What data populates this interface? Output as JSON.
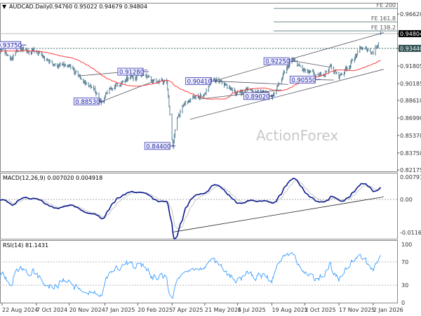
{
  "header": {
    "symbol": "AUDCAD.Daily",
    "ohlc": "0.94760 0.95022 0.94679 0.94804"
  },
  "watermark": "ActionForex",
  "colors": {
    "bars": "#5b8297",
    "ma": "#ff3b3b",
    "macd": "#0a1a8c",
    "signal": "#c8c8c8",
    "rsi": "#3a9cff",
    "label_border": "#3a3ab0",
    "label_fill": "#eef0ff"
  },
  "chart_data": [
    {
      "type": "line",
      "panel": "price",
      "title": "AUDCAD.Daily",
      "ohlc_last": {
        "open": 0.9476,
        "high": 0.95022,
        "low": 0.94679,
        "close": 0.94804
      },
      "y_ticks": [
        "0.96620",
        "0.94804",
        "0.93440",
        "0.91805",
        "0.90185",
        "0.88610",
        "0.86990",
        "0.85370",
        "0.83750",
        "0.82175"
      ],
      "ylim": [
        0.82175,
        0.9662
      ],
      "current_price_label": "0.94804",
      "level_label": "0.93440",
      "close_path": [
        [
          "2024-08-22",
          0.9285
        ],
        [
          "2024-09-05",
          0.925
        ],
        [
          "2024-09-20",
          0.9375
        ],
        [
          "2024-10-07",
          0.93
        ],
        [
          "2024-10-20",
          0.922
        ],
        [
          "2024-11-10",
          0.918
        ],
        [
          "2024-11-20",
          0.914
        ],
        [
          "2024-12-20",
          0.898
        ],
        [
          "2025-01-03",
          0.8853
        ],
        [
          "2025-01-20",
          0.9
        ],
        [
          "2025-02-10",
          0.905
        ],
        [
          "2025-02-20",
          0.91
        ],
        [
          "2025-03-03",
          0.9128
        ],
        [
          "2025-03-15",
          0.905
        ],
        [
          "2025-03-31",
          0.902
        ],
        [
          "2025-04-08",
          0.844
        ],
        [
          "2025-04-15",
          0.872
        ],
        [
          "2025-04-25",
          0.883
        ],
        [
          "2025-05-21",
          0.893
        ],
        [
          "2025-06-02",
          0.9041
        ],
        [
          "2025-07-04",
          0.893
        ],
        [
          "2025-07-20",
          0.897
        ],
        [
          "2025-08-19",
          0.8902
        ],
        [
          "2025-09-01",
          0.905
        ],
        [
          "2025-09-15",
          0.9225
        ],
        [
          "2025-10-02",
          0.912
        ],
        [
          "2025-10-20",
          0.9055
        ],
        [
          "2025-11-05",
          0.918
        ],
        [
          "2025-11-17",
          0.908
        ],
        [
          "2025-12-01",
          0.92
        ],
        [
          "2025-12-15",
          0.933
        ],
        [
          "2026-01-02",
          0.932
        ],
        [
          "2026-01-08",
          0.94
        ],
        [
          "2026-01-12",
          0.948
        ]
      ],
      "annotations": [
        {
          "text": "0.93750",
          "date": "2024-09-20",
          "price": 0.9375
        },
        {
          "text": "0.91280",
          "date": "2025-03-03",
          "price": 0.9128
        },
        {
          "text": "0.88530",
          "date": "2025-01-03",
          "price": 0.8853
        },
        {
          "text": "0.90410",
          "date": "2025-06-02",
          "price": 0.9041
        },
        {
          "text": "0.84400",
          "date": "2025-04-08",
          "price": 0.844
        },
        {
          "text": "0.89020",
          "date": "2025-08-19",
          "price": 0.8902
        },
        {
          "text": "0.92250",
          "date": "2025-09-15",
          "price": 0.9225
        },
        {
          "text": "0.90550",
          "date": "2025-10-20",
          "price": 0.9055
        }
      ],
      "fib_levels": [
        {
          "label": "FE 200",
          "price": 0.9714
        },
        {
          "label": "FE 161.8",
          "price": 0.959
        },
        {
          "label": "FE 138.2",
          "price": 0.9506
        }
      ],
      "trendlines": [
        {
          "from": [
            "2025-06-02",
            0.9041
          ],
          "to": [
            "2026-01-16",
            0.949
          ]
        },
        {
          "from": [
            "2025-05-01",
            0.8686
          ],
          "to": [
            "2026-01-16",
            0.915
          ]
        },
        {
          "from": [
            "2025-01-03",
            0.8853
          ],
          "to": [
            "2025-03-10",
            0.903
          ]
        },
        {
          "from": [
            "2024-12-05",
            0.909
          ],
          "to": [
            "2025-03-05",
            0.9145
          ]
        },
        {
          "from": [
            "2025-06-02",
            0.9041
          ],
          "to": [
            "2025-09-10",
            0.901
          ]
        },
        {
          "from": [
            "2025-05-15",
            0.8875
          ],
          "to": [
            "2025-09-01",
            0.896
          ]
        },
        {
          "from": [
            "2025-09-15",
            0.923
          ],
          "to": [
            "2025-11-05",
            0.917
          ]
        },
        {
          "from": [
            "2025-09-20",
            0.906
          ],
          "to": [
            "2025-11-10",
            0.905
          ]
        }
      ]
    },
    {
      "type": "line",
      "panel": "macd",
      "title": "MACD(12,26,9) 0.007020 0.004918",
      "y_ticks": [
        "0.00791",
        "0.00",
        "-0.011672"
      ],
      "ylim": [
        -0.011672,
        0.00791
      ],
      "trendline": {
        "from": [
          "2025-04-08",
          -0.0115
        ],
        "to": [
          "2026-01-16",
          0.0009
        ]
      }
    },
    {
      "type": "line",
      "panel": "rsi",
      "title": "RSI(14) 81.1431",
      "y_ticks": [
        "100",
        "70",
        "30",
        "0"
      ],
      "ylim": [
        0,
        100
      ],
      "levels": [
        70,
        30
      ]
    }
  ],
  "x_ticks": [
    "22 Aug 2024",
    "7 Oct 2024",
    "20 Nov 2024",
    "7 Jan 2025",
    "20 Feb 2025",
    "7 Apr 2025",
    "21 May 2025",
    "4 Jul 2025",
    "19 Aug 2025",
    "2 Oct 2025",
    "17 Nov 2025",
    "2 Jan 2026"
  ]
}
